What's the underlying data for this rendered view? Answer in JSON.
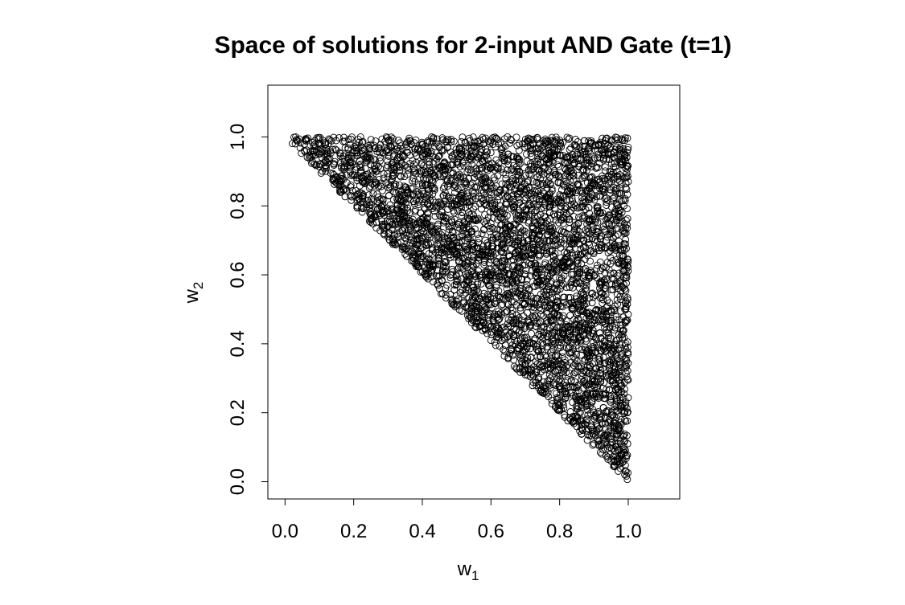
{
  "chart_data": {
    "type": "scatter",
    "title": "Space of solutions for 2-input AND Gate (t=1)",
    "xlabel": "w",
    "xlabel_sub": "1",
    "ylabel": "w",
    "ylabel_sub": "2",
    "xlim": [
      -0.05,
      1.15
    ],
    "ylim": [
      -0.05,
      1.15
    ],
    "x_ticks": [
      0.0,
      0.2,
      0.4,
      0.6,
      0.8,
      1.0
    ],
    "x_tick_labels": [
      "0.0",
      "0.2",
      "0.4",
      "0.6",
      "0.8",
      "1.0"
    ],
    "y_ticks": [
      0.0,
      0.2,
      0.4,
      0.6,
      0.8,
      1.0
    ],
    "y_tick_labels": [
      "0.0",
      "0.2",
      "0.4",
      "0.6",
      "0.8",
      "1.0"
    ],
    "grid": false,
    "marker": "open-circle",
    "marker_color": "#000000",
    "region": "w1 + w2 >= 1, 0 <= w1 <= 1, 0 <= w2 <= 1",
    "point_count": 4500,
    "points_sample": [
      [
        0.03,
        0.98
      ],
      [
        0.06,
        0.99
      ],
      [
        0.08,
        0.96
      ],
      [
        0.1,
        0.95
      ],
      [
        0.11,
        0.99
      ],
      [
        0.12,
        0.91
      ],
      [
        0.14,
        0.88
      ],
      [
        0.16,
        0.84
      ],
      [
        0.19,
        0.83
      ],
      [
        0.21,
        0.8
      ],
      [
        0.22,
        1.0
      ],
      [
        0.25,
        0.76
      ],
      [
        0.3,
        0.71
      ],
      [
        0.33,
        0.99
      ],
      [
        0.35,
        0.66
      ],
      [
        0.4,
        0.61
      ],
      [
        0.45,
        0.56
      ],
      [
        0.5,
        0.51
      ],
      [
        0.55,
        0.47
      ],
      [
        0.6,
        0.41
      ],
      [
        0.65,
        0.36
      ],
      [
        0.7,
        0.31
      ],
      [
        0.75,
        0.26
      ],
      [
        0.8,
        0.21
      ],
      [
        0.85,
        0.16
      ],
      [
        0.9,
        0.11
      ],
      [
        0.95,
        0.06
      ],
      [
        0.97,
        0.05
      ],
      [
        0.98,
        0.08
      ],
      [
        0.99,
        0.02
      ],
      [
        0.99,
        0.5
      ],
      [
        0.99,
        0.99
      ],
      [
        0.8,
        0.99
      ],
      [
        0.6,
        0.99
      ],
      [
        0.7,
        0.6
      ]
    ]
  }
}
